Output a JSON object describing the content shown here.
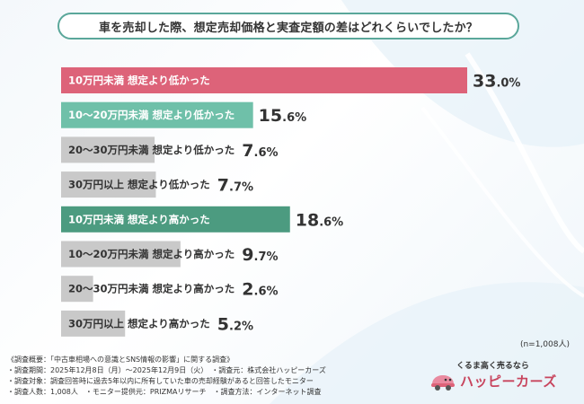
{
  "title": "車を売却した際、想定売却価格と実査定額の差はどれくらいでしたか？",
  "colors": {
    "lower_over10": "#dd6379",
    "lower_10_20": "#6fc0a9",
    "higher_under10": "#4c9b80",
    "neutral": "#c9c9c9",
    "title_border": "#5aa79a",
    "brand": "#c8455e"
  },
  "chart_data": {
    "type": "bar",
    "orientation": "horizontal",
    "unit": "%",
    "categories": [
      "10万円未満 想定より低かった",
      "10～20万円未満 想定より低かった",
      "20～30万円未満 想定より低かった",
      "30万円以上 想定より低かった",
      "10万円未満 想定より高かった",
      "10～20万円未満 想定より高かった",
      "20～30万円未満 想定より高かった",
      "30万円以上 想定より高かった"
    ],
    "values": [
      33.0,
      15.6,
      7.6,
      7.7,
      18.6,
      9.7,
      2.6,
      5.2
    ],
    "bar_colors": [
      "#dd6379",
      "#6fc0a9",
      "#c9c9c9",
      "#c9c9c9",
      "#4c9b80",
      "#c9c9c9",
      "#c9c9c9",
      "#c9c9c9"
    ],
    "label_colors": [
      "#ffffff",
      "#ffffff",
      "#333333",
      "#333333",
      "#ffffff",
      "#333333",
      "#333333",
      "#333333"
    ],
    "xlim": [
      0,
      33.0
    ]
  },
  "sample_note": "(n=1,008人)",
  "notes": [
    "《調査概要：「中古車相場への意識とSNS情報の影響」に関する調査》",
    "・調査期間：2025年12月8日（月）～2025年12月9日（火）　・調査元：株式会社ハッピーカーズ",
    "・調査対象：調査回答時に過去5年以内に所有していた車の売却経験があると回答したモニター",
    "・調査人数：1,008人　・モニター提供元：PRIZMAリサーチ　・調査方法：インターネット調査"
  ],
  "brand": {
    "tagline": "くるま高く売るなら",
    "name": "ハッピーカーズ",
    "icon": "car-icon"
  }
}
